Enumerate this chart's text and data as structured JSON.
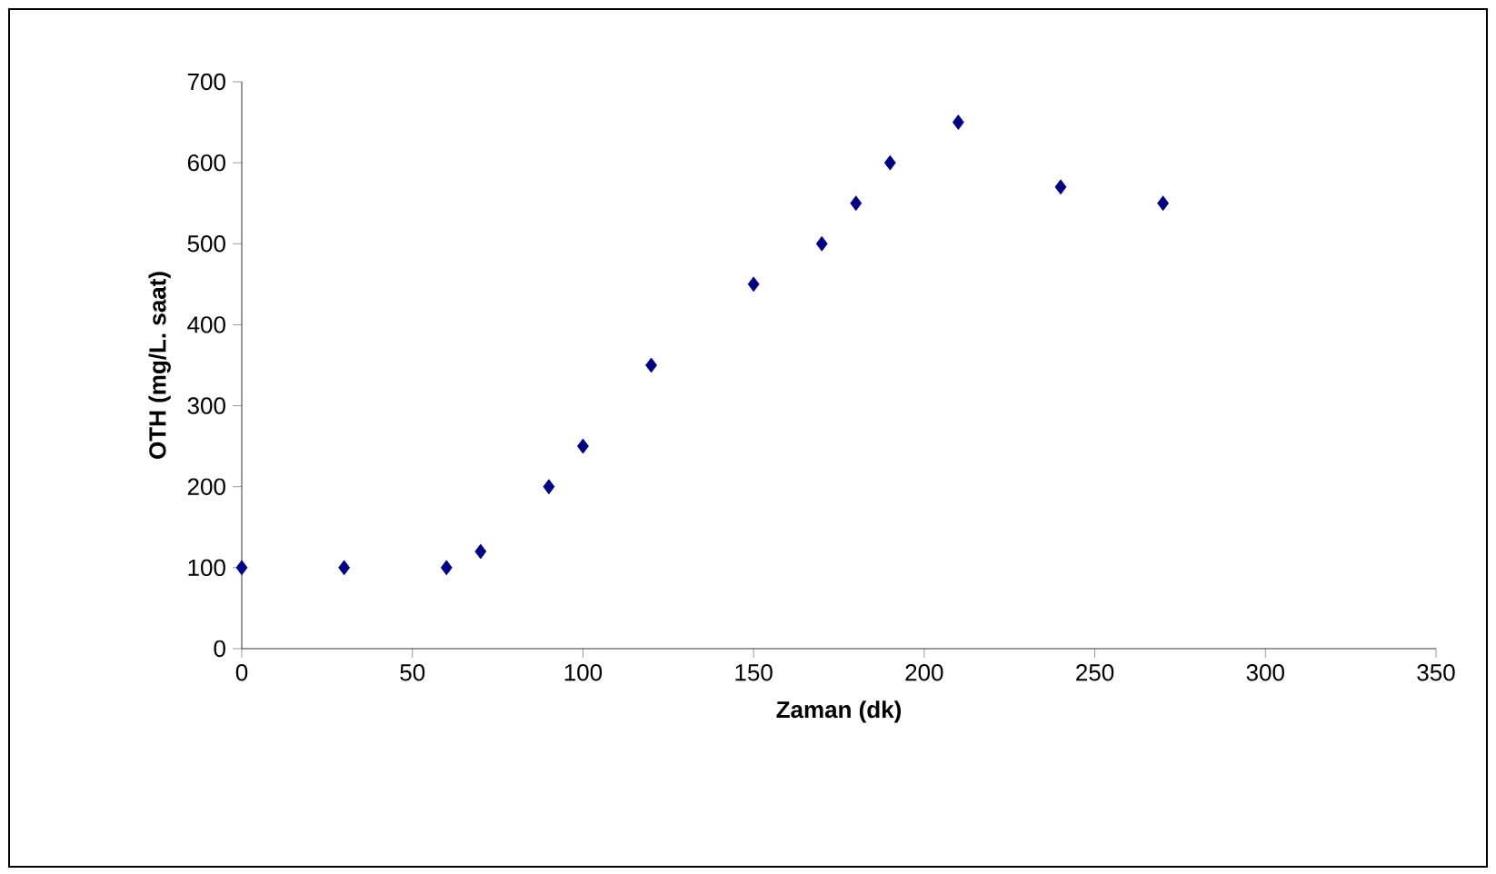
{
  "chart_data": {
    "type": "scatter",
    "xlabel": "Zaman (dk)",
    "ylabel": "OTH (mg/L. saat)",
    "x": [
      0,
      30,
      60,
      70,
      90,
      100,
      120,
      150,
      170,
      180,
      190,
      210,
      240,
      270
    ],
    "values": [
      100,
      100,
      100,
      120,
      200,
      250,
      350,
      450,
      500,
      550,
      600,
      650,
      570,
      550
    ],
    "color": "#000080",
    "marker": "diamond",
    "xlim": [
      0,
      350
    ],
    "xticks": [
      0,
      50,
      100,
      150,
      200,
      250,
      300,
      350
    ],
    "ylim": [
      0,
      700
    ],
    "yticks": [
      0,
      100,
      200,
      300,
      400,
      500,
      600,
      700
    ],
    "grid": false
  }
}
